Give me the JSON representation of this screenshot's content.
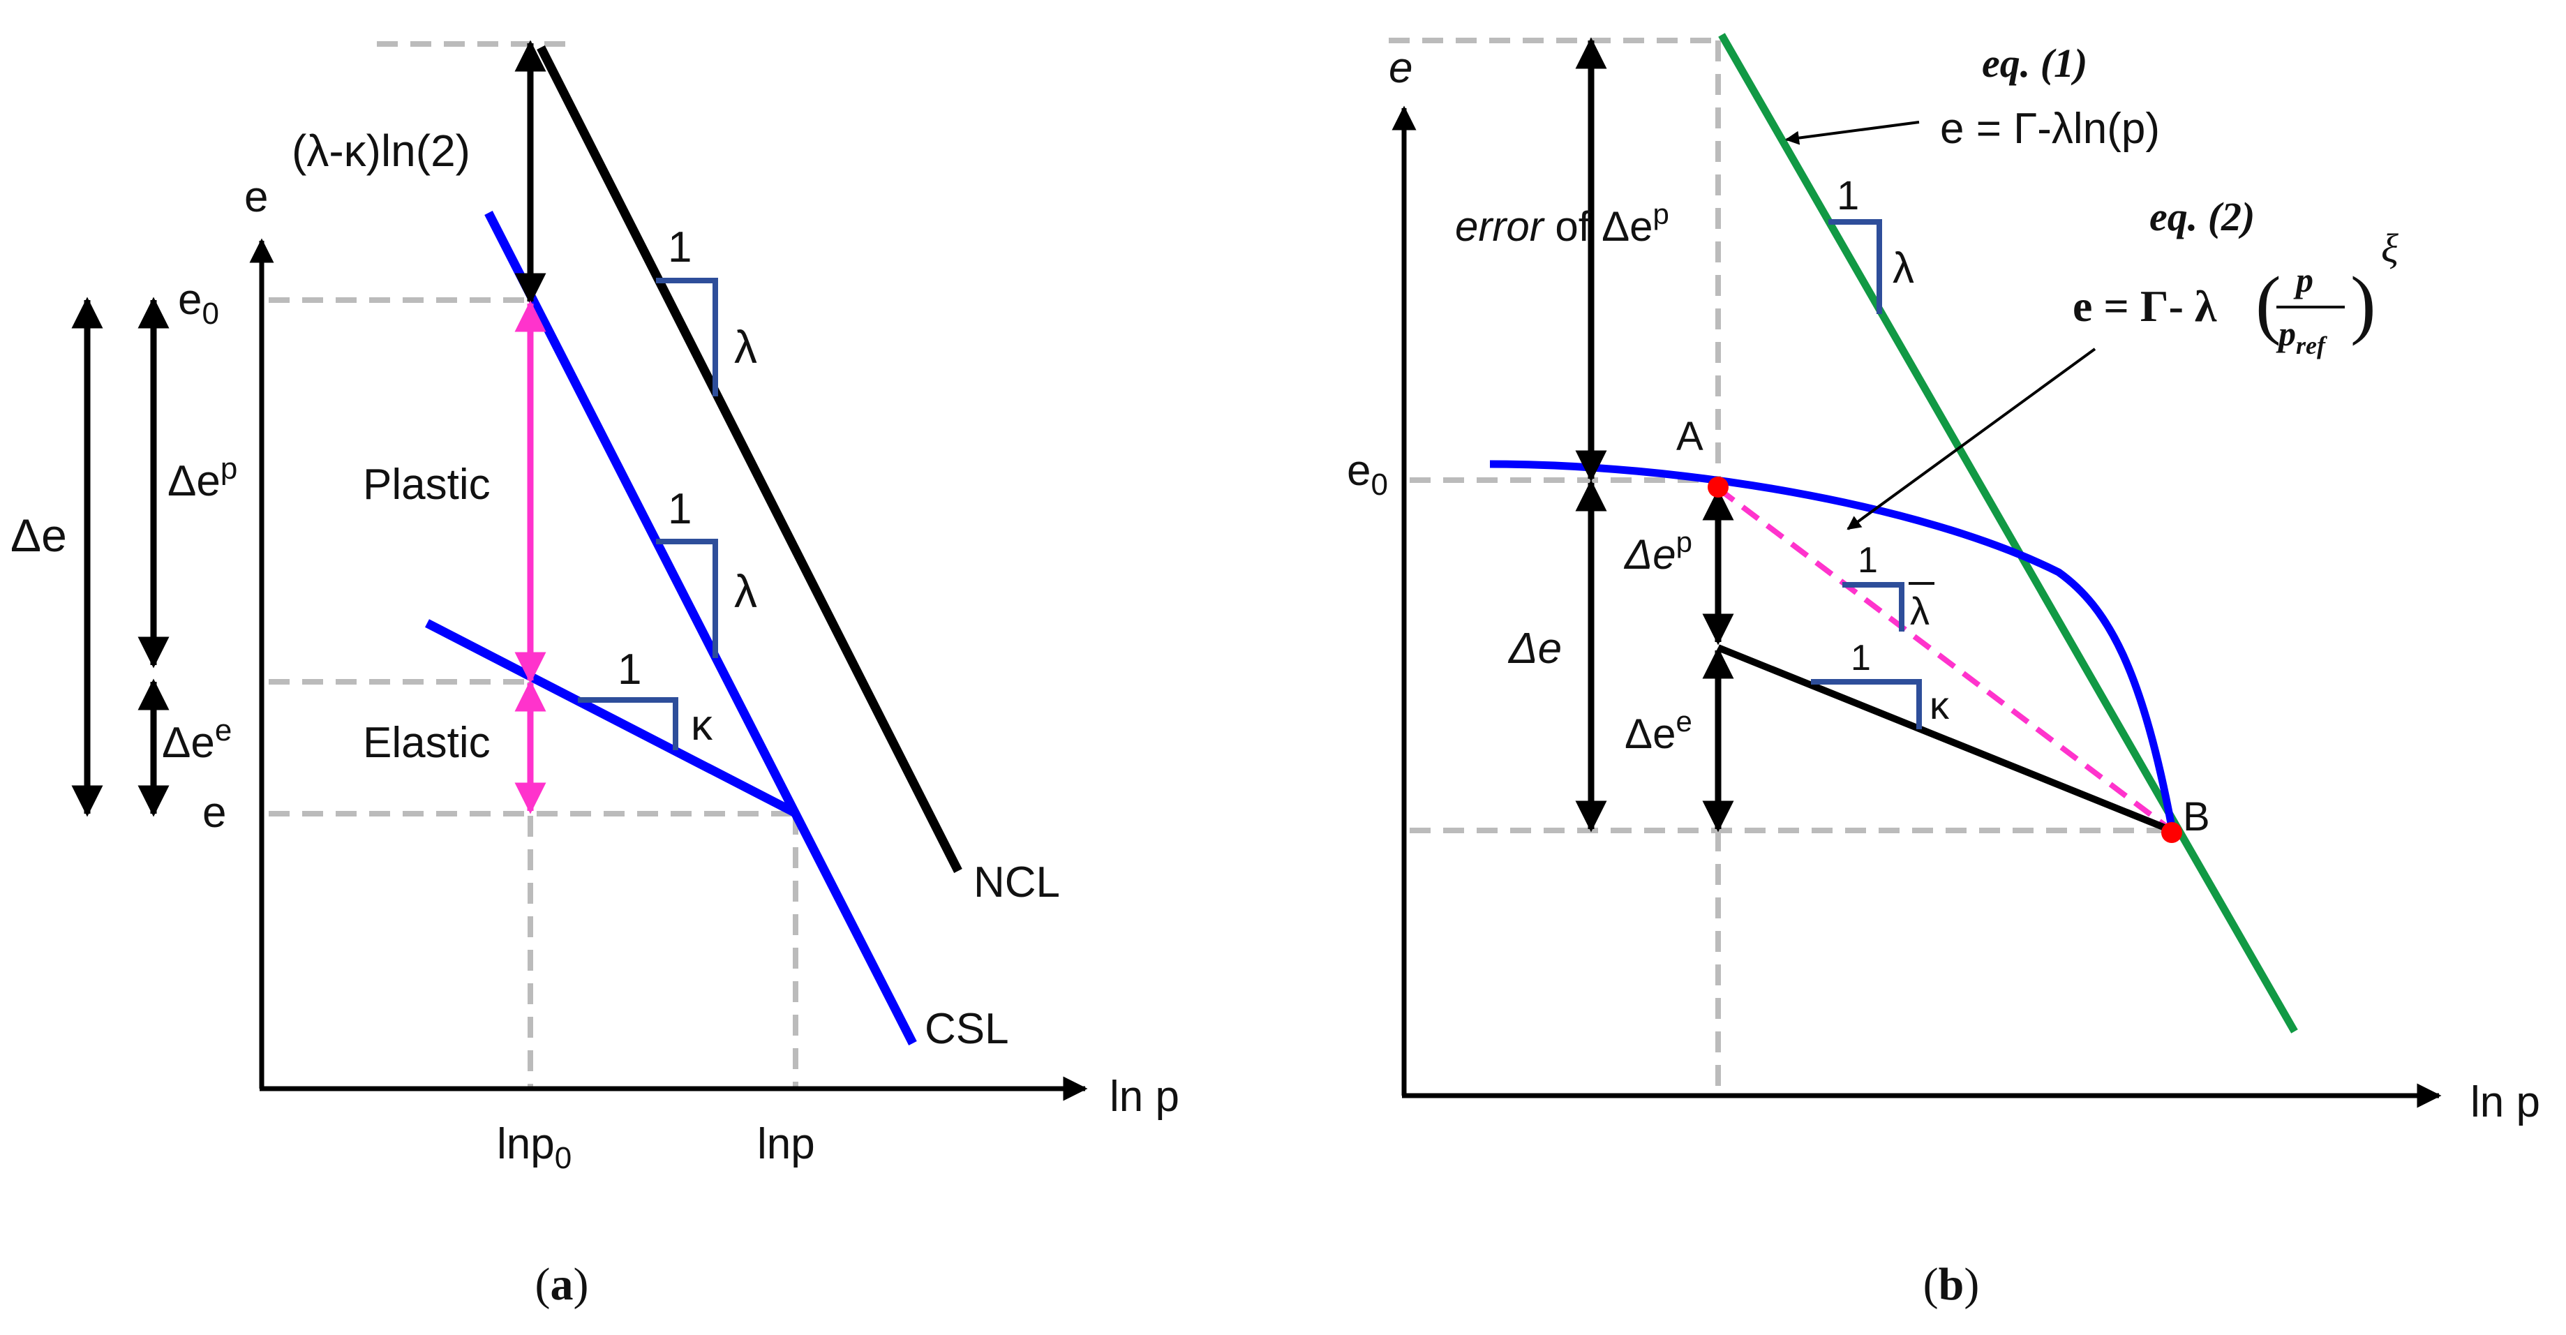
{
  "colors": {
    "ncl": "#000000",
    "csl": "#0000ff",
    "arrow_magenta": "#ff33cc",
    "slope_triangle": "#2e4e9a",
    "eq1_line": "#119944",
    "point_marker": "#ff0000",
    "dashed_guide": "#bbbbbb"
  },
  "panel_a": {
    "axis_e": "e",
    "axis_lnp": "ln p",
    "e0": "e",
    "e0_sub": "0",
    "e_level": "e",
    "lnp0": "lnp",
    "lnp0_sub": "0",
    "lnp": "lnp",
    "delta_e": "Δe",
    "delta_ep": "Δe",
    "delta_ep_sup": "p",
    "delta_ee": "Δe",
    "delta_ee_sup": "e",
    "shift_label": "(λ-κ)ln(2)",
    "plastic": "Plastic",
    "elastic": "Elastic",
    "slope_one_1": "1",
    "slope_lambda_1": "λ",
    "slope_one_2": "1",
    "slope_lambda_2": "λ",
    "slope_one_3": "1",
    "slope_kappa": "κ",
    "ncl": "NCL",
    "csl": "CSL",
    "caption_open": "(",
    "caption_letter": "a",
    "caption_close": ")"
  },
  "panel_b": {
    "axis_e": "e",
    "axis_lnp": "ln p",
    "e0": "e",
    "e0_sub": "0",
    "eq1_title": "eq. (1)",
    "eq1_formula": "e = Γ-λln(p)",
    "eq2_title": "eq. (2)",
    "eq2_lhs": "e = Γ- λ",
    "eq2_num": "p",
    "eq2_den": "p",
    "eq2_den_sub": "ref",
    "eq2_exp": "ξ",
    "error_word": "error",
    "error_rest": " of Δe",
    "error_sup": "p",
    "point_a": "A",
    "point_b": "B",
    "delta_e": "Δe",
    "delta_ep": "Δe",
    "delta_ep_sup": "p",
    "delta_ee": "Δe",
    "delta_ee_sup": "e",
    "slope_one_1": "1",
    "slope_lambda": "λ",
    "slope_one_2": "1",
    "slope_lambda_bar": "λ",
    "slope_one_3": "1",
    "slope_kappa": "κ",
    "caption_open": "(",
    "caption_letter": "b",
    "caption_close": ")"
  }
}
